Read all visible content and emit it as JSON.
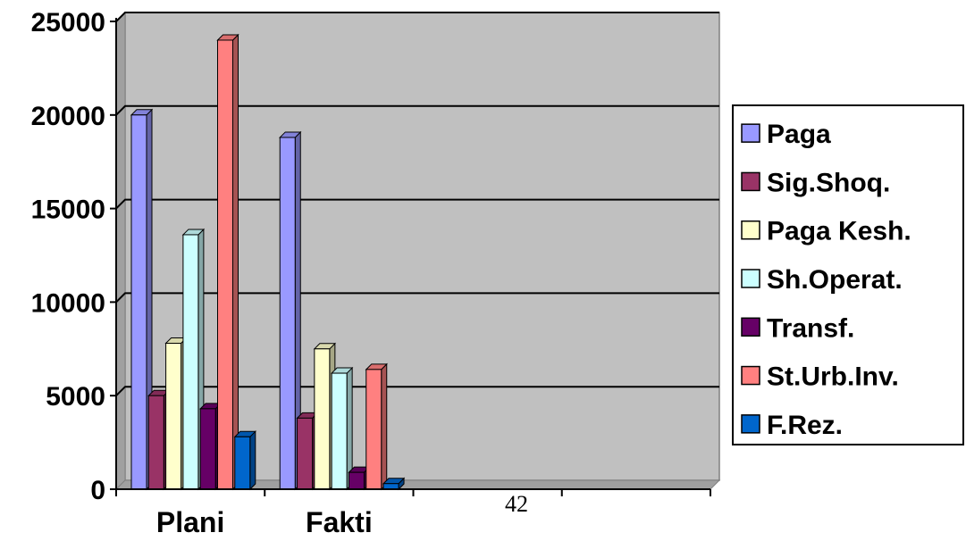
{
  "chart_data": {
    "type": "bar",
    "categories": [
      "Plani",
      "Fakti",
      "",
      ""
    ],
    "ylim": [
      0,
      25000
    ],
    "yticks": [
      0,
      5000,
      10000,
      15000,
      20000,
      25000
    ],
    "grid": true,
    "legend_position": "right",
    "series": [
      {
        "name": "Paga",
        "color": "#9999ff",
        "values": [
          20000,
          18800,
          null,
          null
        ]
      },
      {
        "name": "Sig.Shoq.",
        "color": "#993366",
        "values": [
          5000,
          3800,
          null,
          null
        ]
      },
      {
        "name": "Paga Kesh.",
        "color": "#ffffcc",
        "values": [
          7800,
          7500,
          null,
          null
        ]
      },
      {
        "name": "Sh.Operat.",
        "color": "#ccffff",
        "values": [
          13600,
          6200,
          null,
          null
        ]
      },
      {
        "name": "Transf.",
        "color": "#660066",
        "values": [
          4300,
          900,
          null,
          null
        ]
      },
      {
        "name": "St.Urb.Inv.",
        "color": "#ff8080",
        "values": [
          24000,
          6400,
          null,
          null
        ]
      },
      {
        "name": "F.Rez.",
        "color": "#0066cc",
        "values": [
          2800,
          300,
          null,
          null
        ]
      }
    ]
  },
  "page_number": "42",
  "colors": {
    "plot_background": "#c0c0c0",
    "gridline": "#000000"
  }
}
